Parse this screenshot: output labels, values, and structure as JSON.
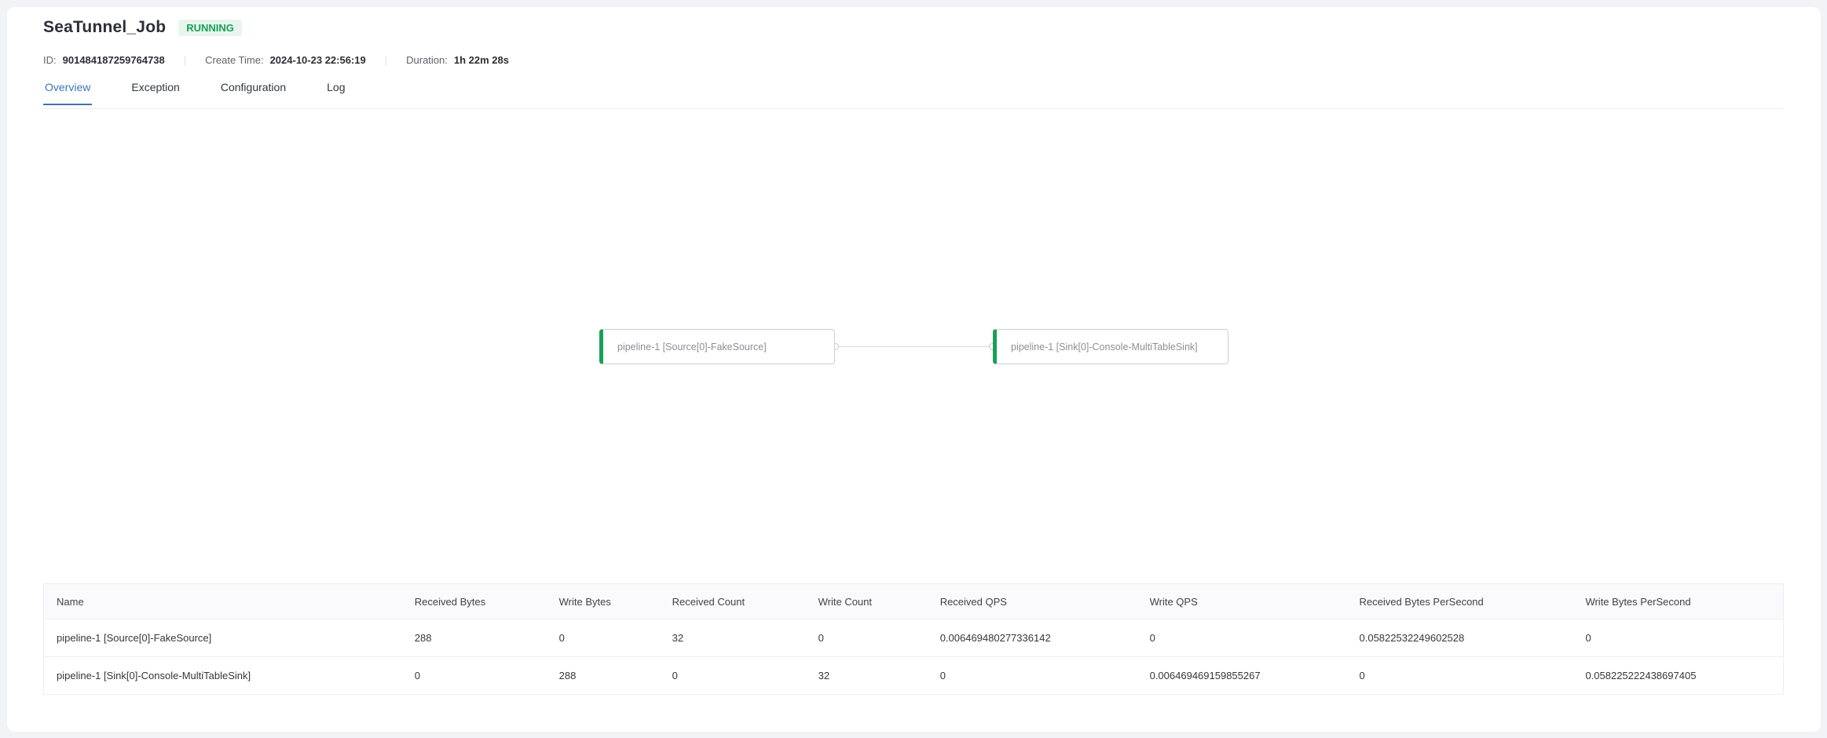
{
  "header": {
    "title": "SeaTunnel_Job",
    "status": "RUNNING"
  },
  "meta": {
    "id_label": "ID:",
    "id_value": "901484187259764738",
    "separator": "|",
    "create_time_label": "Create Time:",
    "create_time_value": "2024-10-23 22:56:19",
    "duration_label": "Duration:",
    "duration_value": "1h 22m 28s"
  },
  "tabs": {
    "items": [
      {
        "label": "Overview",
        "active": true
      },
      {
        "label": "Exception",
        "active": false
      },
      {
        "label": "Configuration",
        "active": false
      },
      {
        "label": "Log",
        "active": false
      }
    ]
  },
  "dag": {
    "nodes": [
      {
        "id": "source",
        "label": "pipeline-1 [Source[0]-FakeSource]"
      },
      {
        "id": "sink",
        "label": "pipeline-1 [Sink[0]-Console-MultiTableSink]"
      }
    ],
    "edges": [
      {
        "from": "source",
        "to": "sink"
      }
    ]
  },
  "table": {
    "columns": [
      "Name",
      "Received Bytes",
      "Write Bytes",
      "Received Count",
      "Write Count",
      "Received QPS",
      "Write QPS",
      "Received Bytes PerSecond",
      "Write Bytes PerSecond"
    ],
    "rows": [
      [
        "pipeline-1 [Source[0]-FakeSource]",
        "288",
        "0",
        "32",
        "0",
        "0.006469480277336142",
        "0",
        "0.05822532249602528",
        "0"
      ],
      [
        "pipeline-1 [Sink[0]-Console-MultiTableSink]",
        "0",
        "288",
        "0",
        "32",
        "0",
        "0.006469469159855267",
        "0",
        "0.058225222438697405"
      ]
    ]
  },
  "colors": {
    "status_green": "#18a058",
    "status_green_bg": "#e8f5ec",
    "tab_active_blue": "#3e74b5",
    "node_accent_green": "#18a058",
    "page_background": "#f2f3f7",
    "table_header_bg": "#fafafc",
    "border": "#eceef2"
  }
}
